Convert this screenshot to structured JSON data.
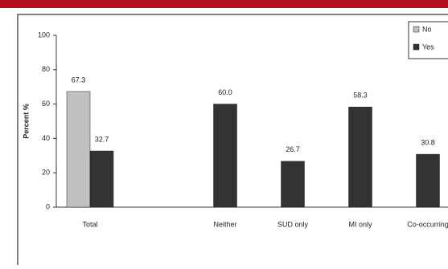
{
  "chart_data": {
    "type": "bar",
    "y_label": "Percent %",
    "categories": [
      "Total",
      null,
      "Neither",
      "SUD only",
      "MI only",
      "Co-occurring"
    ],
    "series": [
      {
        "name": "No",
        "color": "#c0c0c0",
        "values": [
          67.3,
          null,
          null,
          null,
          null,
          null
        ],
        "value_labels": [
          "67.3",
          null,
          null,
          null,
          null,
          null
        ]
      },
      {
        "name": "Yes",
        "color": "#333333",
        "values": [
          32.7,
          null,
          60.0,
          26.7,
          58.3,
          30.8
        ],
        "value_labels": [
          "32.7",
          null,
          "60.0",
          "26.7",
          "58.3",
          "30.8"
        ]
      }
    ],
    "ylim": [
      0,
      100
    ],
    "yticks": [
      0,
      20,
      40,
      60,
      80,
      100
    ],
    "grid": false,
    "legend": "top-right"
  }
}
